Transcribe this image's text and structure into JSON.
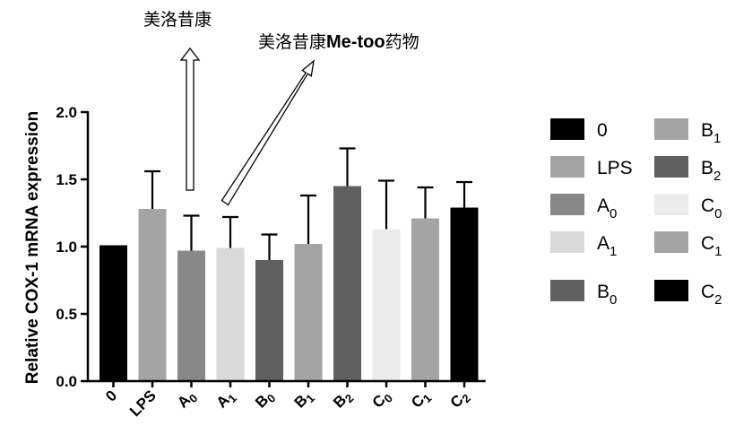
{
  "chart_data": {
    "type": "bar",
    "ylabel": "Relative COX-1 mRNA expression",
    "ylim": [
      0,
      2.0
    ],
    "yticks": [
      "0.0",
      "0.5",
      "1.0",
      "1.5",
      "2.0"
    ],
    "categories": [
      {
        "base": "0",
        "sub": ""
      },
      {
        "base": "LPS",
        "sub": ""
      },
      {
        "base": "A",
        "sub": "0"
      },
      {
        "base": "A",
        "sub": "1"
      },
      {
        "base": "B",
        "sub": "0"
      },
      {
        "base": "B",
        "sub": "1"
      },
      {
        "base": "B",
        "sub": "2"
      },
      {
        "base": "C",
        "sub": "0"
      },
      {
        "base": "C",
        "sub": "1"
      },
      {
        "base": "C",
        "sub": "2"
      }
    ],
    "values": [
      1.01,
      1.28,
      0.97,
      0.99,
      0.9,
      1.02,
      1.45,
      1.13,
      1.21,
      1.29
    ],
    "errors": [
      0.0,
      0.28,
      0.26,
      0.23,
      0.19,
      0.36,
      0.28,
      0.36,
      0.23,
      0.19
    ],
    "colors": [
      "#000000",
      "#a4a4a4",
      "#888888",
      "#d9d9d9",
      "#606060",
      "#a4a4a4",
      "#606060",
      "#ececec",
      "#a4a4a4",
      "#000000"
    ],
    "legend": [
      {
        "base": "0",
        "sub": "",
        "color": "#000000"
      },
      {
        "base": "LPS",
        "sub": "",
        "color": "#a4a4a4"
      },
      {
        "base": "A",
        "sub": "0",
        "color": "#888888"
      },
      {
        "base": "A",
        "sub": "1",
        "color": "#d9d9d9"
      },
      {
        "base": "B",
        "sub": "0",
        "color": "#606060"
      },
      {
        "base": "B",
        "sub": "1",
        "color": "#a4a4a4"
      },
      {
        "base": "B",
        "sub": "2",
        "color": "#606060"
      },
      {
        "base": "C",
        "sub": "0",
        "color": "#ececec"
      },
      {
        "base": "C",
        "sub": "1",
        "color": "#a4a4a4"
      },
      {
        "base": "C",
        "sub": "2",
        "color": "#000000"
      }
    ],
    "legend_position": "right",
    "grid": false
  },
  "annotations": {
    "arrow1_text": "美洛昔康",
    "arrow2_prefix": "美洛昔康",
    "arrow2_bold": "Me-too",
    "arrow2_suffix": "药物"
  }
}
